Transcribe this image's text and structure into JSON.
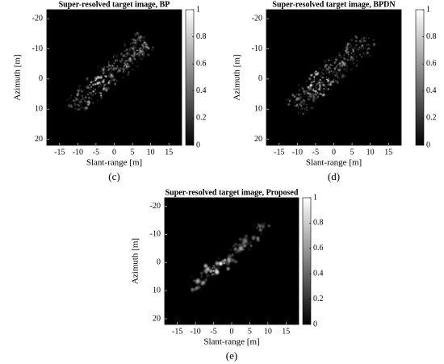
{
  "chart_data": [
    {
      "type": "image",
      "title": "Super-resolved target image, BP",
      "xlabel": "Slant-range [m]",
      "ylabel": "Azimuth [m]",
      "caption": "(c)",
      "xlim": [
        -18.5,
        18.5
      ],
      "xticks": [
        -15,
        -10,
        -5,
        0,
        5,
        10,
        15
      ],
      "ylim": [
        -23,
        22
      ],
      "y_inverted": true,
      "yticks": [
        -20,
        -10,
        0,
        10,
        20
      ],
      "colormap": "gray",
      "clim": [
        0,
        1
      ],
      "cticks": [
        0,
        0.2,
        0.4,
        0.6,
        0.8,
        1
      ]
    },
    {
      "type": "image",
      "title": "Super-resolved target image, BPDN",
      "xlabel": "Slant-range [m]",
      "ylabel": "Azimuth [m]",
      "caption": "(d)",
      "xlim": [
        -18.5,
        18.5
      ],
      "xticks": [
        -15,
        -10,
        -5,
        0,
        5,
        10,
        15
      ],
      "ylim": [
        -23,
        22
      ],
      "y_inverted": true,
      "yticks": [
        -20,
        -10,
        0,
        10,
        20
      ],
      "colormap": "gray",
      "clim": [
        0,
        1
      ],
      "cticks": [
        0,
        0.2,
        0.4,
        0.6,
        0.8,
        1
      ]
    },
    {
      "type": "image",
      "title": "Super-resolved target image, Proposed",
      "xlabel": "Slant-range [m]",
      "ylabel": "Azimuth [m]",
      "caption": "(e)",
      "xlim": [
        -18.5,
        18.5
      ],
      "xticks": [
        -15,
        -10,
        -5,
        0,
        5,
        10,
        15
      ],
      "ylim": [
        -23,
        22
      ],
      "y_inverted": true,
      "yticks": [
        -20,
        -10,
        0,
        10,
        20
      ],
      "colormap": "gray",
      "clim": [
        0,
        1
      ],
      "cticks": [
        0,
        0.2,
        0.4,
        0.6,
        0.8,
        1
      ]
    }
  ]
}
